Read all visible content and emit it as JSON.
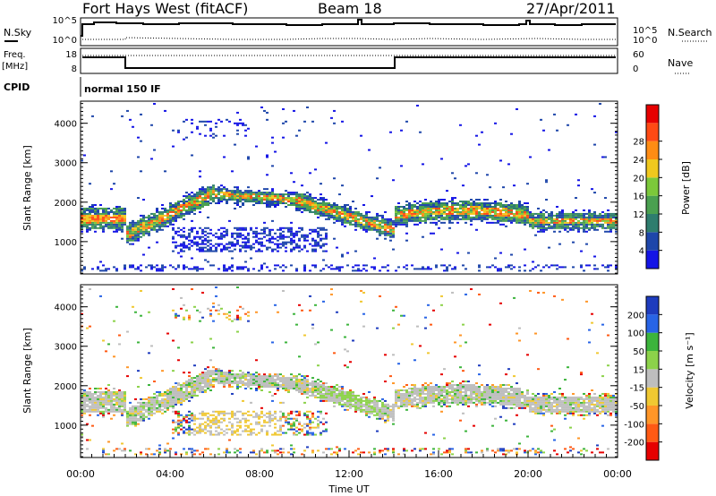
{
  "header": {
    "title": "Fort Hays West (fitACF)",
    "beam": "Beam 18",
    "date": "27/Apr/2011"
  },
  "noise_panel": {
    "left_label": "N.Sky",
    "right_label": "N.Search",
    "left_ticks": [
      "10^5",
      "10^0"
    ],
    "right_ticks": [
      "10^5",
      "10^0"
    ]
  },
  "freq_panel": {
    "left_label_line1": "Freq.",
    "left_label_line2": "[MHz]",
    "left_ticks": [
      "18",
      "8"
    ],
    "right_label": "Nave",
    "right_ticks": [
      "60",
      "0"
    ]
  },
  "cpid": {
    "label": "CPID",
    "value": "normal 150 IF"
  },
  "chart_data": [
    {
      "type": "heatmap",
      "name": "power",
      "ylabel": "Slant Range [km]",
      "yticks": [
        "1000",
        "2000",
        "3000",
        "4000"
      ],
      "ylim": [
        180,
        4560
      ],
      "xlim_hours": [
        0,
        24
      ],
      "colorbar_label": "Power [dB]",
      "colorbar_ticks": [
        "4",
        "8",
        "12",
        "16",
        "20",
        "24",
        "28"
      ],
      "colors": [
        "#1414e6",
        "#1e46aa",
        "#2e7d6e",
        "#4aa050",
        "#7cc83a",
        "#f0c81e",
        "#ff8c14",
        "#ff4a14",
        "#e60000"
      ]
    },
    {
      "type": "heatmap",
      "name": "velocity",
      "ylabel": "Slant Range [km]",
      "yticks": [
        "1000",
        "2000",
        "3000",
        "4000"
      ],
      "ylim": [
        180,
        4560
      ],
      "xlim_hours": [
        0,
        24
      ],
      "xlabel": "Time UT",
      "xticks": [
        "00:00",
        "04:00",
        "08:00",
        "12:00",
        "16:00",
        "20:00",
        "00:00"
      ],
      "colorbar_label": "Velocity [m s⁻¹]",
      "colorbar_ticks": [
        "200",
        "100",
        "50",
        "15",
        "-15",
        "-50",
        "-100",
        "-200"
      ],
      "colors": [
        "#1e3cbe",
        "#2864e6",
        "#3cb43c",
        "#8cd24a",
        "#bebebe",
        "#f0c832",
        "#ff9628",
        "#ff5a14",
        "#e60000"
      ]
    }
  ]
}
